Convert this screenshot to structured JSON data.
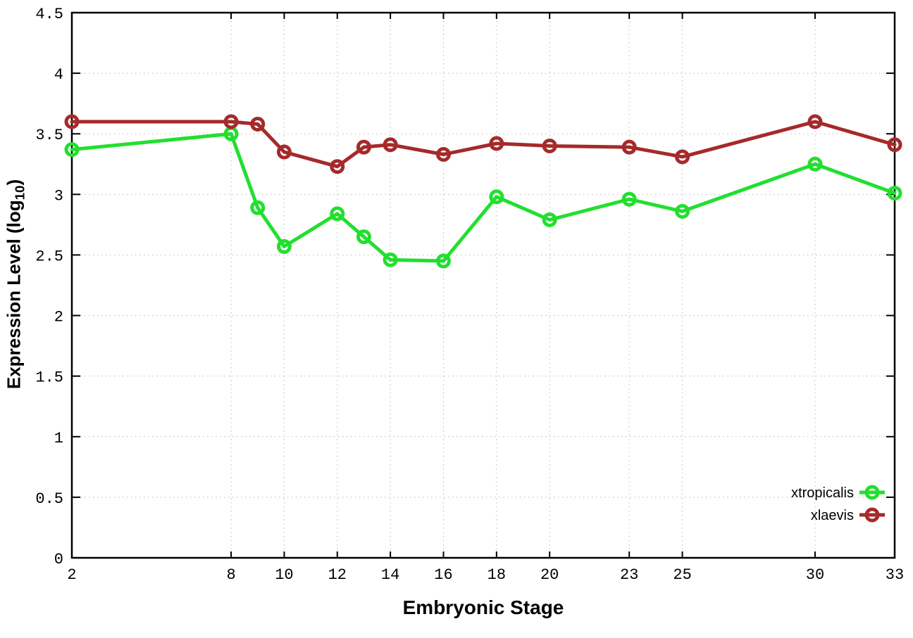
{
  "page": {
    "background": "#ffffff"
  },
  "axis_titles": {
    "ylabel_prefix": "Expression Level (log",
    "ylabel_sub": "10",
    "ylabel_suffix": ")",
    "xlabel": "Embryonic Stage"
  },
  "chart_data": {
    "type": "line",
    "title": "",
    "xlabel": "Embryonic Stage",
    "ylabel": "Expression Level (log10)",
    "xlim": [
      2,
      33
    ],
    "ylim": [
      0,
      4.5
    ],
    "x_ticks": [
      2,
      8,
      10,
      12,
      14,
      16,
      18,
      20,
      23,
      25,
      30,
      33
    ],
    "y_ticks": [
      0,
      0.5,
      1,
      1.5,
      2,
      2.5,
      3,
      3.5,
      4,
      4.5
    ],
    "grid": true,
    "grid_style": "dotted",
    "grid_color": "#b9b9b9",
    "marker": "open-circle",
    "legend_position": "bottom-right-inside",
    "x": [
      2,
      8,
      9,
      10,
      12,
      13,
      14,
      16,
      18,
      20,
      23,
      25,
      30,
      33
    ],
    "series": [
      {
        "name": "xtropicalis",
        "color": "#22df2f",
        "values": [
          3.37,
          3.5,
          2.89,
          2.57,
          2.84,
          2.65,
          2.46,
          2.45,
          2.98,
          2.79,
          2.96,
          2.86,
          3.25,
          3.01
        ]
      },
      {
        "name": "xlaevis",
        "color": "#a52a2a",
        "values": [
          3.6,
          3.6,
          3.58,
          3.35,
          3.23,
          3.39,
          3.41,
          3.33,
          3.42,
          3.4,
          3.39,
          3.31,
          3.6,
          3.41
        ]
      }
    ]
  }
}
